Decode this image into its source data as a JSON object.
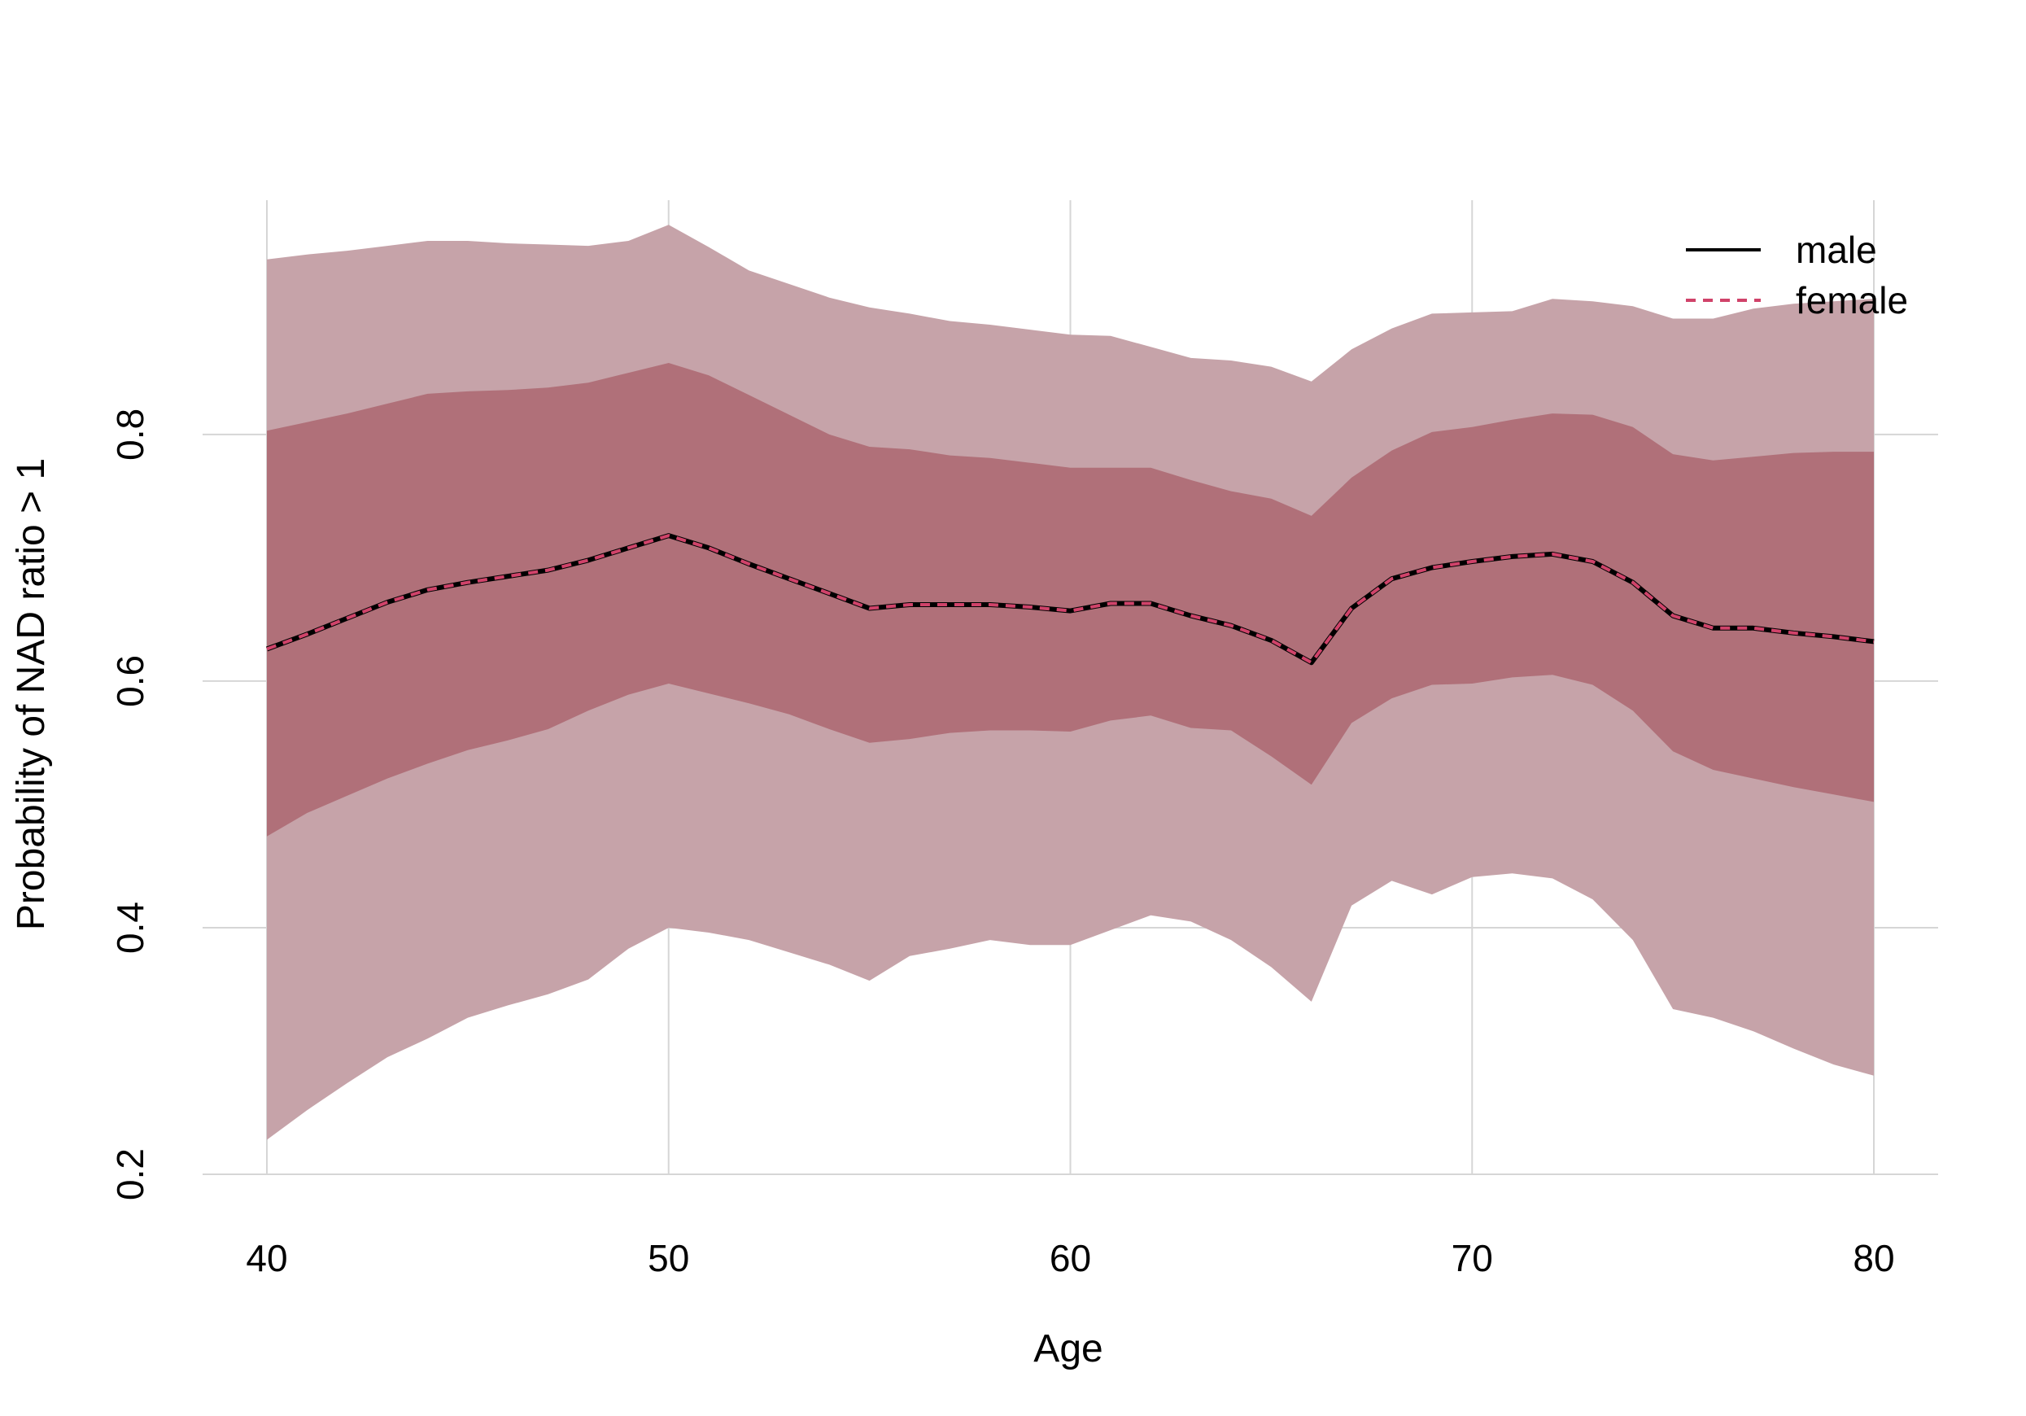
{
  "chart_data": {
    "type": "line",
    "xlabel": "Age",
    "ylabel": "Probability of NAD ratio > 1",
    "xlim": [
      38.4,
      81.6
    ],
    "ylim": [
      0.2,
      0.99
    ],
    "xticks": [
      40,
      50,
      60,
      70,
      80
    ],
    "yticks": [
      0.2,
      0.4,
      0.6,
      0.8
    ],
    "xtick_labels": [
      "40",
      "50",
      "60",
      "70",
      "80"
    ],
    "ytick_labels": [
      "0.2",
      "0.4",
      "0.6",
      "0.8"
    ],
    "grid": true,
    "legend_position": "top-right",
    "x": [
      40,
      41,
      42,
      43,
      44,
      45,
      46,
      47,
      48,
      49,
      50,
      51,
      52,
      53,
      54,
      55,
      56,
      57,
      58,
      59,
      60,
      61,
      62,
      63,
      64,
      65,
      66,
      67,
      68,
      69,
      70,
      71,
      72,
      73,
      74,
      75,
      76,
      77,
      78,
      79,
      80
    ],
    "series": [
      {
        "name": "male",
        "line_style": "solid",
        "color": "#000000",
        "values": [
          0.626,
          0.638,
          0.651,
          0.664,
          0.674,
          0.68,
          0.685,
          0.69,
          0.698,
          0.708,
          0.718,
          0.708,
          0.695,
          0.683,
          0.671,
          0.659,
          0.662,
          0.662,
          0.662,
          0.66,
          0.657,
          0.663,
          0.663,
          0.653,
          0.645,
          0.633,
          0.615,
          0.659,
          0.683,
          0.692,
          0.697,
          0.701,
          0.703,
          0.697,
          0.68,
          0.653,
          0.643,
          0.643,
          0.639,
          0.636,
          0.632
        ]
      },
      {
        "name": "female",
        "line_style": "dashed",
        "color": "#d0436a",
        "values": [
          0.626,
          0.638,
          0.651,
          0.664,
          0.674,
          0.68,
          0.685,
          0.69,
          0.698,
          0.708,
          0.718,
          0.708,
          0.695,
          0.683,
          0.671,
          0.659,
          0.662,
          0.662,
          0.662,
          0.66,
          0.657,
          0.663,
          0.663,
          0.653,
          0.645,
          0.633,
          0.615,
          0.659,
          0.683,
          0.692,
          0.697,
          0.701,
          0.703,
          0.697,
          0.68,
          0.653,
          0.643,
          0.643,
          0.639,
          0.636,
          0.632
        ]
      }
    ],
    "bands": [
      {
        "level": "outer",
        "color": "#c6a3a9",
        "upper": [
          0.942,
          0.946,
          0.949,
          0.953,
          0.957,
          0.957,
          0.955,
          0.954,
          0.953,
          0.957,
          0.97,
          0.952,
          0.933,
          0.922,
          0.911,
          0.903,
          0.898,
          0.892,
          0.889,
          0.885,
          0.881,
          0.88,
          0.871,
          0.862,
          0.86,
          0.855,
          0.843,
          0.869,
          0.886,
          0.898,
          0.899,
          0.9,
          0.91,
          0.908,
          0.904,
          0.894,
          0.894,
          0.902,
          0.906,
          0.908,
          0.91
        ],
        "lower": [
          0.228,
          0.252,
          0.274,
          0.295,
          0.31,
          0.327,
          0.337,
          0.346,
          0.358,
          0.383,
          0.4,
          0.396,
          0.39,
          0.38,
          0.37,
          0.357,
          0.377,
          0.383,
          0.39,
          0.386,
          0.386,
          0.398,
          0.41,
          0.405,
          0.39,
          0.368,
          0.34,
          0.418,
          0.438,
          0.427,
          0.441,
          0.444,
          0.44,
          0.423,
          0.39,
          0.334,
          0.327,
          0.316,
          0.302,
          0.289,
          0.28
        ]
      },
      {
        "level": "inner",
        "color": "#b07079",
        "upper": [
          0.803,
          0.81,
          0.817,
          0.825,
          0.833,
          0.835,
          0.836,
          0.838,
          0.842,
          0.85,
          0.858,
          0.848,
          0.832,
          0.816,
          0.8,
          0.79,
          0.788,
          0.783,
          0.781,
          0.777,
          0.773,
          0.773,
          0.773,
          0.763,
          0.754,
          0.748,
          0.734,
          0.765,
          0.787,
          0.802,
          0.806,
          0.812,
          0.817,
          0.816,
          0.806,
          0.784,
          0.779,
          0.782,
          0.785,
          0.786,
          0.786
        ],
        "lower": [
          0.474,
          0.493,
          0.507,
          0.521,
          0.533,
          0.544,
          0.552,
          0.561,
          0.576,
          0.589,
          0.598,
          0.59,
          0.582,
          0.573,
          0.561,
          0.55,
          0.553,
          0.558,
          0.56,
          0.56,
          0.559,
          0.568,
          0.572,
          0.562,
          0.56,
          0.539,
          0.516,
          0.566,
          0.586,
          0.597,
          0.598,
          0.603,
          0.605,
          0.597,
          0.576,
          0.543,
          0.528,
          0.521,
          0.514,
          0.508,
          0.502
        ]
      }
    ]
  }
}
